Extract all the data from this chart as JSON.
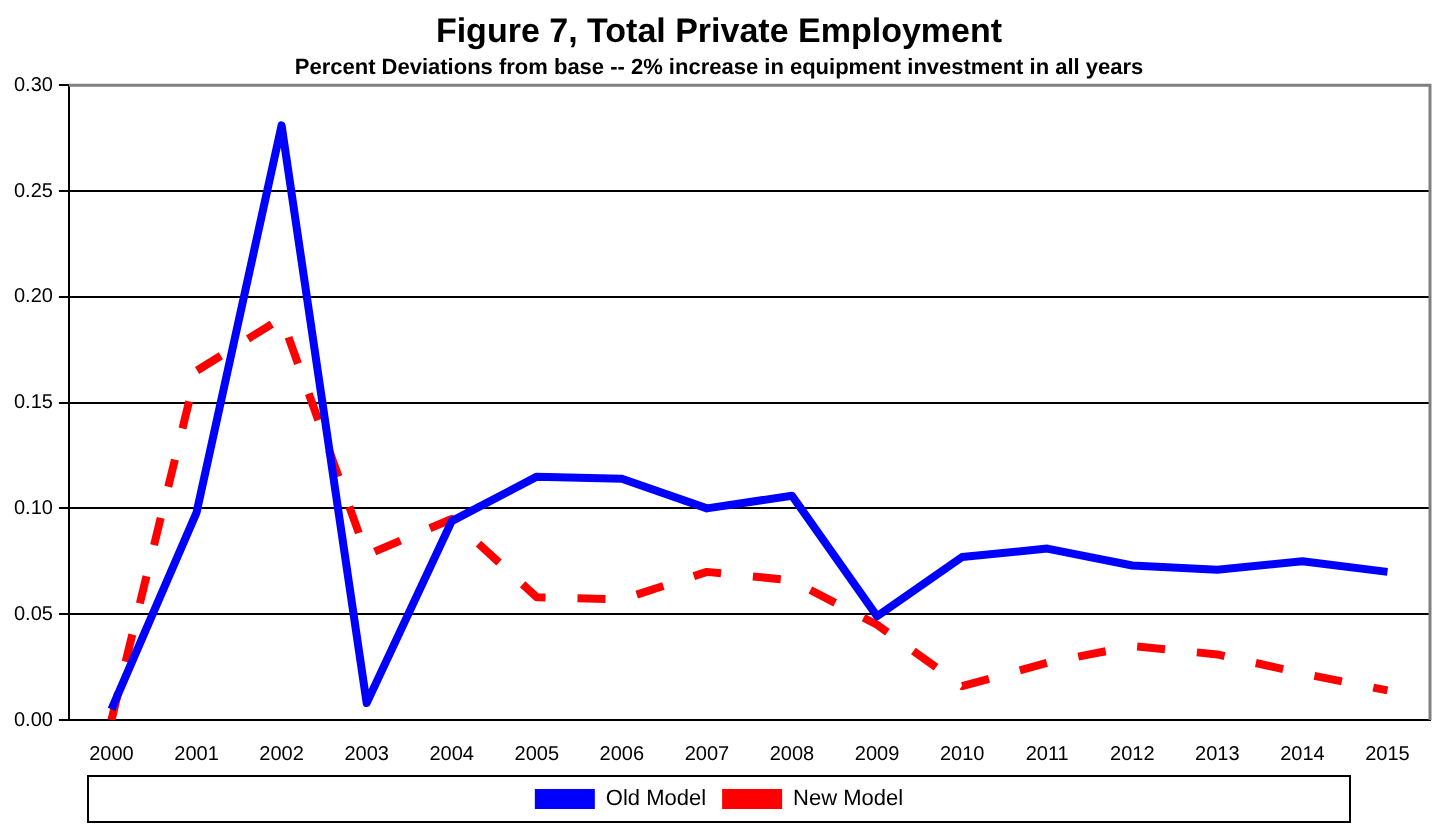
{
  "chart_data": {
    "type": "line",
    "title": "Figure 7, Total Private Employment",
    "subtitle": "Percent Deviations from base -- 2% increase in equipment investment in all years",
    "categories": [
      "2000",
      "2001",
      "2002",
      "2003",
      "2004",
      "2005",
      "2006",
      "2007",
      "2008",
      "2009",
      "2010",
      "2011",
      "2012",
      "2013",
      "2014",
      "2015"
    ],
    "series": [
      {
        "name": "Old Model",
        "color": "#0000ff",
        "line_style": "solid",
        "values": [
          0.005,
          0.098,
          0.281,
          0.008,
          0.094,
          0.115,
          0.114,
          0.1,
          0.106,
          0.049,
          0.077,
          0.081,
          0.073,
          0.071,
          0.075,
          0.07
        ]
      },
      {
        "name": "New Model",
        "color": "#ff0000",
        "line_style": "dashed",
        "values": [
          0.0,
          0.165,
          0.19,
          0.078,
          0.095,
          0.058,
          0.057,
          0.07,
          0.066,
          0.045,
          0.016,
          0.027,
          0.035,
          0.031,
          0.022,
          0.014
        ]
      }
    ],
    "ylim": [
      0,
      0.3
    ],
    "yticks": [
      {
        "value": 0,
        "label": "0.00"
      },
      {
        "value": 0.05,
        "label": "0.05"
      },
      {
        "value": 0.1,
        "label": "0.10"
      },
      {
        "value": 0.15,
        "label": "0.15"
      },
      {
        "value": 0.2,
        "label": "0.20"
      },
      {
        "value": 0.25,
        "label": "0.25"
      },
      {
        "value": 0.3,
        "label": "0.30"
      }
    ],
    "grid": "y",
    "legend": "bottom",
    "marker": "none"
  }
}
